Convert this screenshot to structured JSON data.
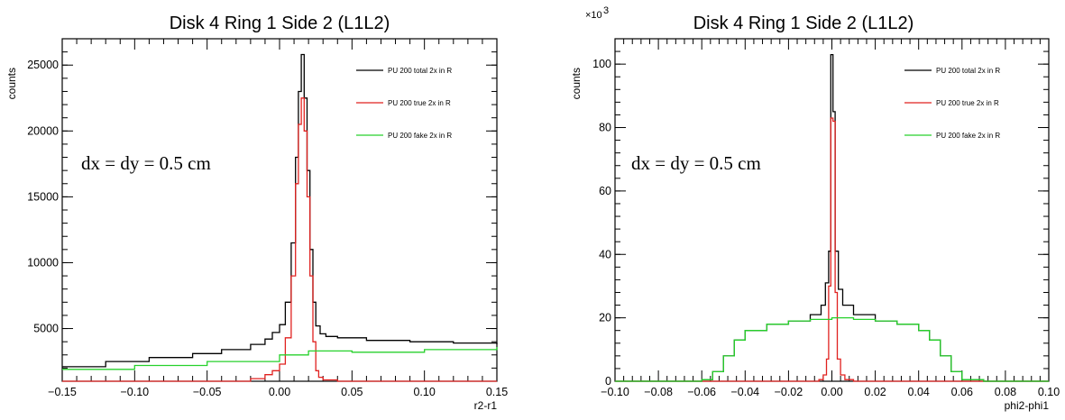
{
  "chart_data": [
    {
      "type": "line",
      "style": "step-histogram",
      "title": "Disk 4 Ring 1 Side 2 (L1L2)",
      "xlabel": "r2-r1",
      "ylabel": "counts",
      "annotation": "dx = dy = 0.5 cm",
      "xlim": [
        -0.15,
        0.15
      ],
      "ylim": [
        1000,
        27000
      ],
      "x_ticks": [
        -0.15,
        -0.1,
        -0.05,
        0.0,
        0.05,
        0.1,
        0.15
      ],
      "x_tick_labels": [
        "−0.15",
        "−0.10",
        "−0.05",
        "0.00",
        "0.05",
        "0.10",
        "0.15"
      ],
      "y_ticks": [
        5000,
        10000,
        15000,
        20000,
        25000
      ],
      "y_tick_labels": [
        "5000",
        "10000",
        "15000",
        "20000",
        "25000"
      ],
      "grid": false,
      "legend": "top-right",
      "series": [
        {
          "name": "PU 200 total 2x in R",
          "color": "#000000",
          "x": [
            -0.15,
            -0.12,
            -0.09,
            -0.06,
            -0.04,
            -0.02,
            -0.01,
            -0.005,
            0.0,
            0.004,
            0.008,
            0.011,
            0.013,
            0.015,
            0.017,
            0.019,
            0.021,
            0.023,
            0.025,
            0.028,
            0.032,
            0.04,
            0.06,
            0.09,
            0.12,
            0.15
          ],
          "y": [
            2100,
            2500,
            2800,
            3100,
            3400,
            3800,
            4200,
            4700,
            5300,
            7000,
            11500,
            18000,
            23000,
            25800,
            22500,
            17000,
            11000,
            7000,
            5200,
            4600,
            4400,
            4300,
            4100,
            4000,
            3900,
            3800
          ]
        },
        {
          "name": "PU 200 true 2x in R",
          "color": "#e0211f",
          "x": [
            -0.15,
            -0.05,
            -0.02,
            -0.01,
            -0.005,
            0.0,
            0.004,
            0.008,
            0.011,
            0.013,
            0.015,
            0.017,
            0.019,
            0.021,
            0.023,
            0.025,
            0.027,
            0.03,
            0.04,
            0.06,
            0.15
          ],
          "y": [
            1000,
            1000,
            1200,
            1500,
            1800,
            2300,
            4300,
            9000,
            16000,
            20500,
            22500,
            20000,
            15000,
            9000,
            4000,
            1800,
            1300,
            1100,
            1000,
            1000,
            1000
          ]
        },
        {
          "name": "PU 200 fake 2x in R",
          "color": "#27d12c",
          "x": [
            -0.15,
            -0.1,
            -0.05,
            0.0,
            0.02,
            0.05,
            0.1,
            0.15
          ],
          "y": [
            1900,
            2200,
            2500,
            3000,
            3300,
            3200,
            3400,
            3600
          ]
        }
      ]
    },
    {
      "type": "line",
      "style": "step-histogram",
      "title": "Disk 4 Ring 1 Side 2 (L1L2)",
      "xlabel": "phi2-phi1",
      "ylabel": "counts",
      "y_multiplier": "×10",
      "y_multiplier_exp": "3",
      "annotation": "dx = dy = 0.5 cm",
      "xlim": [
        -0.1,
        0.1
      ],
      "ylim": [
        0,
        108000
      ],
      "x_ticks": [
        -0.1,
        -0.08,
        -0.06,
        -0.04,
        -0.02,
        0.0,
        0.02,
        0.04,
        0.06,
        0.08,
        0.1
      ],
      "x_tick_labels": [
        "−0.10",
        "−0.08",
        "−0.06",
        "−0.04",
        "−0.02",
        "0.00",
        "0.02",
        "0.04",
        "0.06",
        "0.08",
        "0.10"
      ],
      "y_ticks": [
        0,
        20000,
        40000,
        60000,
        80000,
        100000
      ],
      "y_tick_labels": [
        "0",
        "20",
        "40",
        "60",
        "80",
        "100"
      ],
      "grid": false,
      "legend": "top-right",
      "series": [
        {
          "name": "PU 200 total 2x in R",
          "color": "#000000",
          "x": [
            -0.1,
            -0.07,
            -0.06,
            -0.055,
            -0.05,
            -0.045,
            -0.04,
            -0.03,
            -0.02,
            -0.01,
            -0.005,
            -0.003,
            -0.0015,
            -0.0005,
            0.0005,
            0.0015,
            0.003,
            0.005,
            0.01,
            0.02,
            0.03,
            0.04,
            0.045,
            0.05,
            0.055,
            0.06,
            0.07,
            0.1
          ],
          "y": [
            0,
            0,
            500,
            3000,
            8000,
            13000,
            16000,
            18000,
            19000,
            21000,
            24000,
            31000,
            41000,
            103000,
            85000,
            41000,
            29000,
            24000,
            21000,
            19000,
            18000,
            16000,
            13000,
            8000,
            3000,
            500,
            0,
            0
          ]
        },
        {
          "name": "PU 200 true 2x in R",
          "color": "#e0211f",
          "x": [
            -0.1,
            -0.01,
            -0.006,
            -0.004,
            -0.0025,
            -0.0015,
            -0.0005,
            0.0005,
            0.0015,
            0.0025,
            0.004,
            0.006,
            0.01,
            0.1
          ],
          "y": [
            0,
            0,
            500,
            2000,
            7000,
            30000,
            83000,
            82000,
            28000,
            7000,
            2000,
            500,
            0,
            0
          ]
        },
        {
          "name": "PU 200 fake 2x in R",
          "color": "#27d12c",
          "x": [
            -0.1,
            -0.07,
            -0.06,
            -0.055,
            -0.05,
            -0.045,
            -0.04,
            -0.03,
            -0.02,
            -0.01,
            0.0,
            0.01,
            0.02,
            0.03,
            0.04,
            0.045,
            0.05,
            0.055,
            0.06,
            0.07,
            0.1
          ],
          "y": [
            0,
            0,
            500,
            3000,
            8000,
            13000,
            16000,
            18000,
            19000,
            19500,
            20000,
            19500,
            19000,
            18000,
            16000,
            13000,
            8000,
            3000,
            500,
            0,
            0
          ]
        }
      ]
    }
  ]
}
